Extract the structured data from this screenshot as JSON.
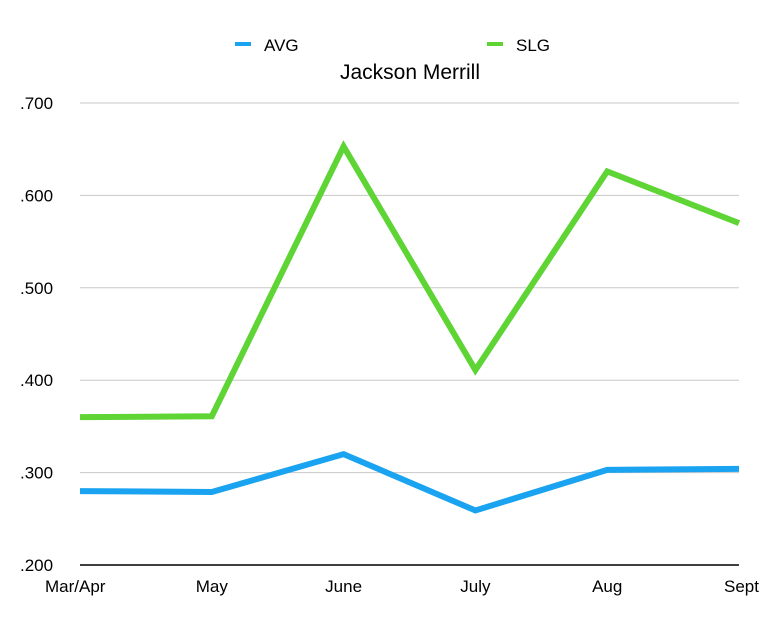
{
  "chart_data": {
    "type": "line",
    "title": "Jackson Merrill",
    "xlabel": "",
    "ylabel": "",
    "categories": [
      "Mar/Apr",
      "May",
      "June",
      "July",
      "Aug",
      "Sept"
    ],
    "y_ticks": [
      ".200",
      ".300",
      ".400",
      ".500",
      ".600",
      ".700"
    ],
    "ylim": [
      0.2,
      0.7
    ],
    "grid": true,
    "legend_position": "top",
    "series": [
      {
        "name": "AVG",
        "color": "#1aa3f0",
        "values": [
          0.28,
          0.279,
          0.32,
          0.259,
          0.303,
          0.304
        ]
      },
      {
        "name": "SLG",
        "color": "#5ed435",
        "values": [
          0.36,
          0.361,
          0.653,
          0.411,
          0.626,
          0.57
        ]
      }
    ]
  }
}
